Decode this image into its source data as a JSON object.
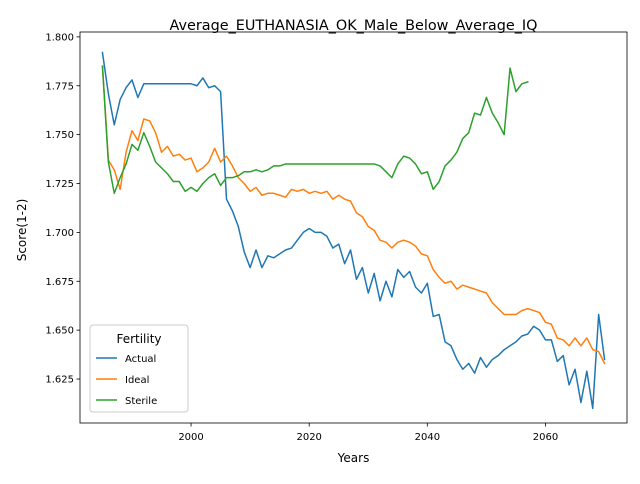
{
  "chart_data": {
    "type": "line",
    "title": "Average_EUTHANASIA_OK_Male_Below_Average_IQ",
    "xlabel": "Years",
    "ylabel": "Score(1-2)",
    "xlim": [
      1981.2,
      2073.8
    ],
    "ylim": [
      1.6025,
      1.8025
    ],
    "xticks": [
      2000,
      2020,
      2040,
      2060
    ],
    "xtick_labels": [
      "2000",
      "2020",
      "2040",
      "2060"
    ],
    "yticks": [
      1.625,
      1.65,
      1.675,
      1.7,
      1.725,
      1.75,
      1.775,
      1.8
    ],
    "ytick_labels": [
      "1.625",
      "1.650",
      "1.675",
      "1.700",
      "1.725",
      "1.750",
      "1.775",
      "1.800"
    ],
    "grid": false,
    "legend": {
      "title": "Fertility",
      "location": "lower left"
    },
    "series": [
      {
        "name": "Actual",
        "color": "#1f77b4",
        "x": [
          1985,
          1986,
          1987,
          1988,
          1989,
          1990,
          1991,
          1992,
          1993,
          1994,
          1995,
          1996,
          1997,
          1998,
          1999,
          2000,
          2001,
          2002,
          2003,
          2004,
          2005,
          2006,
          2007,
          2008,
          2009,
          2010,
          2011,
          2012,
          2013,
          2014,
          2015,
          2016,
          2017,
          2018,
          2019,
          2020,
          2021,
          2022,
          2023,
          2024,
          2025,
          2026,
          2027,
          2028,
          2029,
          2030,
          2031,
          2032,
          2033,
          2034,
          2035,
          2036,
          2037,
          2038,
          2039,
          2040,
          2041,
          2042,
          2043,
          2044,
          2045,
          2046,
          2047,
          2048,
          2049,
          2050,
          2051,
          2052,
          2053,
          2054,
          2055,
          2056,
          2057,
          2058,
          2059,
          2060,
          2061,
          2062,
          2063,
          2064,
          2065,
          2066,
          2067,
          2068,
          2069,
          2070
        ],
        "values": [
          1.792,
          1.771,
          1.755,
          1.768,
          1.774,
          1.778,
          1.769,
          1.776,
          1.776,
          1.776,
          1.776,
          1.776,
          1.776,
          1.776,
          1.776,
          1.776,
          1.775,
          1.779,
          1.774,
          1.775,
          1.772,
          1.717,
          1.711,
          1.703,
          1.69,
          1.682,
          1.691,
          1.682,
          1.688,
          1.687,
          1.689,
          1.691,
          1.692,
          1.696,
          1.7,
          1.702,
          1.7,
          1.7,
          1.698,
          1.692,
          1.694,
          1.684,
          1.691,
          1.676,
          1.682,
          1.669,
          1.679,
          1.665,
          1.675,
          1.667,
          1.681,
          1.677,
          1.68,
          1.672,
          1.669,
          1.674,
          1.657,
          1.658,
          1.644,
          1.642,
          1.635,
          1.63,
          1.633,
          1.628,
          1.636,
          1.631,
          1.635,
          1.637,
          1.64,
          1.642,
          1.644,
          1.647,
          1.648,
          1.652,
          1.65,
          1.645,
          1.645,
          1.634,
          1.637,
          1.622,
          1.63,
          1.613,
          1.629,
          1.61,
          1.658,
          1.635
        ]
      },
      {
        "name": "Ideal",
        "color": "#ff7f0e",
        "x": [
          1985,
          1986,
          1987,
          1988,
          1989,
          1990,
          1991,
          1992,
          1993,
          1994,
          1995,
          1996,
          1997,
          1998,
          1999,
          2000,
          2001,
          2002,
          2003,
          2004,
          2005,
          2006,
          2007,
          2008,
          2009,
          2010,
          2011,
          2012,
          2013,
          2014,
          2015,
          2016,
          2017,
          2018,
          2019,
          2020,
          2021,
          2022,
          2023,
          2024,
          2025,
          2026,
          2027,
          2028,
          2029,
          2030,
          2031,
          2032,
          2033,
          2034,
          2035,
          2036,
          2037,
          2038,
          2039,
          2040,
          2041,
          2042,
          2043,
          2044,
          2045,
          2046,
          2047,
          2048,
          2049,
          2050,
          2051,
          2052,
          2053,
          2054,
          2055,
          2056,
          2057,
          2058,
          2059,
          2060,
          2061,
          2062,
          2063,
          2064,
          2065,
          2066,
          2067,
          2068,
          2069,
          2070
        ],
        "values": [
          1.785,
          1.737,
          1.732,
          1.722,
          1.741,
          1.752,
          1.747,
          1.758,
          1.757,
          1.751,
          1.741,
          1.744,
          1.739,
          1.74,
          1.737,
          1.738,
          1.731,
          1.733,
          1.736,
          1.743,
          1.736,
          1.739,
          1.734,
          1.728,
          1.725,
          1.721,
          1.723,
          1.719,
          1.72,
          1.72,
          1.719,
          1.718,
          1.722,
          1.721,
          1.722,
          1.72,
          1.721,
          1.72,
          1.721,
          1.717,
          1.719,
          1.717,
          1.716,
          1.71,
          1.708,
          1.703,
          1.701,
          1.696,
          1.695,
          1.692,
          1.695,
          1.696,
          1.695,
          1.693,
          1.689,
          1.688,
          1.681,
          1.677,
          1.674,
          1.675,
          1.671,
          1.673,
          1.672,
          1.671,
          1.67,
          1.669,
          1.664,
          1.661,
          1.658,
          1.658,
          1.658,
          1.66,
          1.661,
          1.66,
          1.659,
          1.654,
          1.653,
          1.646,
          1.645,
          1.642,
          1.646,
          1.642,
          1.646,
          1.64,
          1.639,
          1.633
        ]
      },
      {
        "name": "Sterile",
        "color": "#2ca02c",
        "x": [
          1985,
          1986,
          1987,
          1988,
          1989,
          1990,
          1991,
          1992,
          1993,
          1994,
          1995,
          1996,
          1997,
          1998,
          1999,
          2000,
          2001,
          2002,
          2003,
          2004,
          2005,
          2006,
          2007,
          2008,
          2009,
          2010,
          2011,
          2012,
          2013,
          2014,
          2015,
          2016,
          2017,
          2018,
          2019,
          2020,
          2021,
          2022,
          2023,
          2024,
          2025,
          2026,
          2027,
          2028,
          2029,
          2030,
          2031,
          2032,
          2033,
          2034,
          2035,
          2036,
          2037,
          2038,
          2039,
          2040,
          2041,
          2042,
          2043,
          2044,
          2045,
          2046,
          2047,
          2048,
          2049,
          2050,
          2051,
          2052,
          2053,
          2054,
          2055,
          2056,
          2057
        ],
        "values": [
          1.785,
          1.736,
          1.72,
          1.728,
          1.735,
          1.745,
          1.742,
          1.751,
          1.744,
          1.736,
          1.733,
          1.73,
          1.726,
          1.726,
          1.721,
          1.723,
          1.721,
          1.725,
          1.728,
          1.73,
          1.724,
          1.728,
          1.728,
          1.729,
          1.731,
          1.731,
          1.732,
          1.731,
          1.732,
          1.734,
          1.734,
          1.735,
          1.735,
          1.735,
          1.735,
          1.735,
          1.735,
          1.735,
          1.735,
          1.735,
          1.735,
          1.735,
          1.735,
          1.735,
          1.735,
          1.735,
          1.735,
          1.734,
          1.731,
          1.728,
          1.735,
          1.739,
          1.738,
          1.735,
          1.73,
          1.731,
          1.722,
          1.726,
          1.734,
          1.737,
          1.741,
          1.748,
          1.751,
          1.761,
          1.76,
          1.769,
          1.761,
          1.756,
          1.75,
          1.784,
          1.772,
          1.776,
          1.777
        ]
      }
    ]
  }
}
